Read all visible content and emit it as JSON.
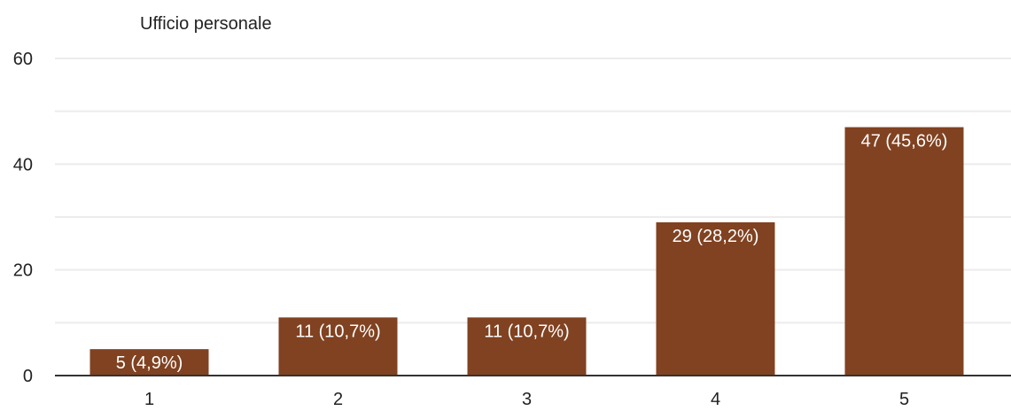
{
  "chart_data": {
    "type": "bar",
    "title": "Ufficio personale",
    "xlabel": "",
    "ylabel": "",
    "categories": [
      "1",
      "2",
      "3",
      "4",
      "5"
    ],
    "values": [
      5,
      11,
      11,
      29,
      47
    ],
    "data_labels": [
      "5 (4,9%)",
      "11 (10,7%)",
      "11 (10,7%)",
      "29 (28,2%)",
      "47 (45,6%)"
    ],
    "ylim": [
      0,
      60
    ],
    "yticks": [
      0,
      20,
      40,
      60
    ],
    "grid": true,
    "legend": "none",
    "colors": {
      "bar": "#804221",
      "grid": "#ececec",
      "axis": "#333333",
      "text": "#222222",
      "bar_label": "#ffffff"
    }
  }
}
